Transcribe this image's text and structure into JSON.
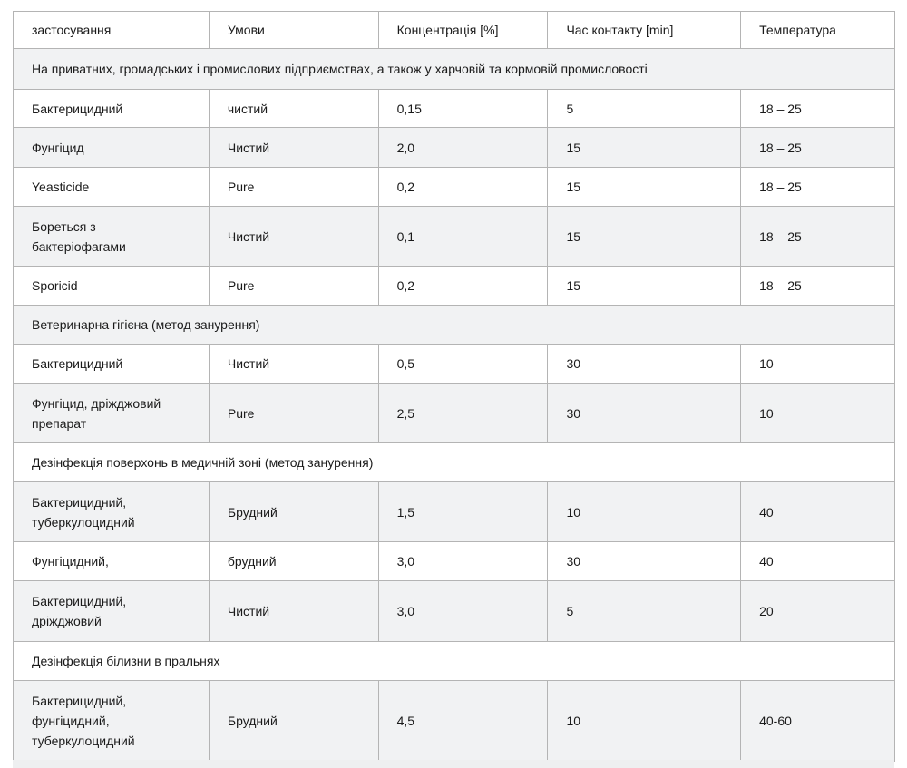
{
  "headers": [
    "застосування",
    "Умови",
    "Концентрація [%]",
    "Час контакту [min]",
    "Температура"
  ],
  "rows": [
    {
      "section": "На приватних, громадських і промислових підприємствах, а також у харчовій та кормовій промисловості"
    },
    {
      "cells": [
        "Бактерицидний",
        "чистий",
        "0,15",
        "5",
        "18 – 25"
      ]
    },
    {
      "cells": [
        "Фунгіцид",
        "Чистий",
        "2,0",
        "15",
        "18 – 25"
      ]
    },
    {
      "cells": [
        "Yeasticide",
        "Pure",
        "0,2",
        "15",
        "18 – 25"
      ]
    },
    {
      "cells": [
        "Бореться з бактеріофагами",
        "Чистий",
        "0,1",
        "15",
        "18 – 25"
      ]
    },
    {
      "cells": [
        "Sporicid",
        "Pure",
        "0,2",
        "15",
        "18 – 25"
      ]
    },
    {
      "section": "Ветеринарна гігієна (метод занурення)"
    },
    {
      "cells": [
        "Бактерицидний",
        "Чистий",
        "0,5",
        "30",
        "10"
      ]
    },
    {
      "cells": [
        "Фунгіцид, дріжджовий препарат",
        "Pure",
        "2,5",
        "30",
        "10"
      ]
    },
    {
      "section": "Дезінфекція поверхонь в медичній зоні (метод занурення)"
    },
    {
      "cells": [
        "Бактерицидний, туберкулоцидний",
        "Брудний",
        "1,5",
        "10",
        "40"
      ]
    },
    {
      "cells": [
        "Фунгіцидний,",
        "брудний",
        "3,0",
        "30",
        "40"
      ]
    },
    {
      "cells": [
        "Бактерицидний, дріжджовий",
        "Чистий",
        "3,0",
        "5",
        "20"
      ]
    },
    {
      "section": "Дезінфекція білизни в пральнях"
    },
    {
      "cells": [
        "Бактерицидний, фунгіцидний, туберкулоцидний",
        "Брудний",
        "4,5",
        "10",
        "40-60"
      ]
    }
  ]
}
